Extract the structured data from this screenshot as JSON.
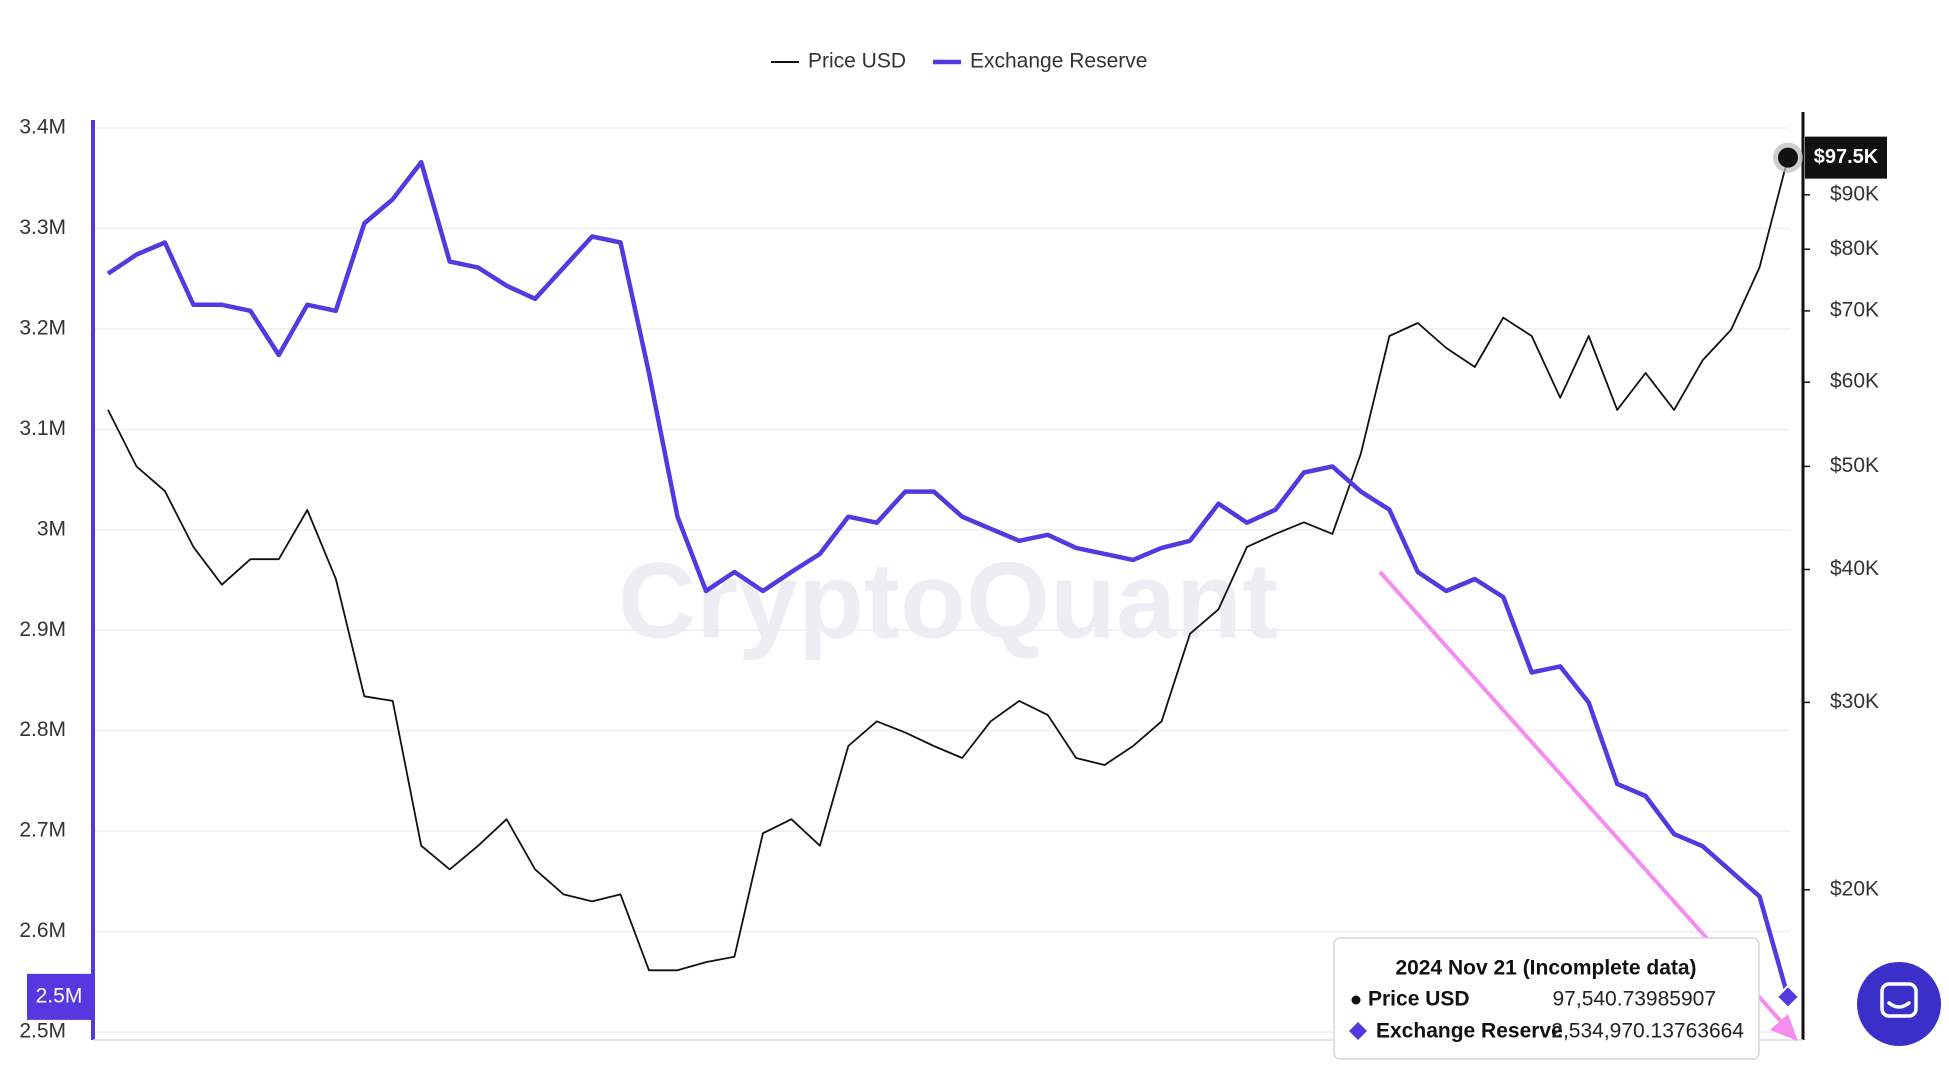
{
  "chart_data": {
    "type": "line",
    "watermark": "CryptoQuant",
    "ylim": [
      2500000,
      3400000
    ],
    "yticks": [
      {
        "value": 2500000,
        "label": "2.5M"
      },
      {
        "value": 2600000,
        "label": "2.6M"
      },
      {
        "value": 2700000,
        "label": "2.7M"
      },
      {
        "value": 2800000,
        "label": "2.8M"
      },
      {
        "value": 2900000,
        "label": "2.9M"
      },
      {
        "value": 3000000,
        "label": "3M"
      },
      {
        "value": 3100000,
        "label": "3.1M"
      },
      {
        "value": 3200000,
        "label": "3.2M"
      },
      {
        "value": 3300000,
        "label": "3.3M"
      },
      {
        "value": 3400000,
        "label": "3.4M"
      }
    ],
    "y2lim": [
      14700,
      104000
    ],
    "y2log": true,
    "y2ticks": [
      {
        "value": 20000,
        "label": "$20K"
      },
      {
        "value": 30000,
        "label": "$30K"
      },
      {
        "value": 40000,
        "label": "$40K"
      },
      {
        "value": 50000,
        "label": "$50K"
      },
      {
        "value": 60000,
        "label": "$60K"
      },
      {
        "value": 70000,
        "label": "$70K"
      },
      {
        "value": 80000,
        "label": "$80K"
      },
      {
        "value": 90000,
        "label": "$90K"
      }
    ],
    "grid": true,
    "series": [
      {
        "name": "Price USD",
        "color": "#111111",
        "axis": "y2",
        "values": [
          56500,
          50000,
          47400,
          42000,
          38700,
          40900,
          40900,
          45500,
          39200,
          30400,
          30100,
          22000,
          20900,
          22000,
          23300,
          20900,
          19800,
          19500,
          19800,
          16800,
          16800,
          17100,
          17300,
          22600,
          23300,
          22000,
          27300,
          28800,
          28100,
          27300,
          26600,
          28800,
          30100,
          29200,
          26600,
          26200,
          27300,
          28800,
          34800,
          36700,
          42000,
          43200,
          44300,
          43200,
          51400,
          66300,
          68200,
          64600,
          62000,
          69000,
          66300,
          58000,
          66300,
          56500,
          61200,
          56500,
          62900,
          67200,
          76900,
          97540.73985907
        ],
        "value_labels": [
          null,
          null,
          null,
          null,
          null,
          null,
          null,
          null,
          null,
          null,
          null,
          null,
          null,
          null,
          null,
          null,
          null,
          null,
          null,
          null,
          null,
          null,
          null,
          null,
          null,
          null,
          null,
          null,
          null,
          null,
          null,
          null,
          null,
          null,
          null,
          null,
          null,
          null,
          null,
          null,
          null,
          null,
          null,
          null,
          null,
          null,
          null,
          null,
          null,
          null,
          null,
          null,
          null,
          null,
          null,
          null,
          null,
          null,
          null,
          "$97.5K"
        ]
      },
      {
        "name": "Exchange Reserve",
        "color": "#5538e0",
        "values": [
          3255000,
          3274000,
          3286000,
          3224000,
          3224000,
          3218000,
          3174000,
          3224000,
          3218000,
          3305000,
          3329000,
          3366000,
          3267000,
          3261000,
          3243000,
          3230000,
          3261000,
          3292000,
          3286000,
          3156000,
          3013000,
          2939000,
          2958000,
          2939000,
          2958000,
          2976000,
          3013000,
          3007000,
          3038000,
          3038000,
          3013000,
          3001000,
          2989000,
          2995000,
          2982000,
          2976000,
          2970000,
          2982000,
          2989000,
          3026000,
          3007000,
          3020000,
          3057000,
          3063000,
          3038000,
          3020000,
          2958000,
          2939000,
          2951000,
          2933000,
          2858000,
          2864000,
          2828000,
          2747000,
          2735000,
          2697000,
          2685000,
          2660000,
          2635000,
          2534970.13763664
        ],
        "value_labels": [
          null,
          null,
          null,
          null,
          null,
          null,
          null,
          null,
          null,
          null,
          null,
          null,
          null,
          null,
          null,
          null,
          null,
          null,
          null,
          null,
          null,
          null,
          null,
          null,
          null,
          null,
          null,
          null,
          null,
          null,
          null,
          null,
          null,
          null,
          null,
          null,
          null,
          null,
          null,
          null,
          null,
          null,
          null,
          null,
          null,
          null,
          null,
          null,
          null,
          null,
          null,
          null,
          null,
          null,
          null,
          null,
          null,
          null,
          null,
          "2.5M"
        ]
      }
    ],
    "tooltip": {
      "title": "2024 Nov 21 (Incomplete data)",
      "rows": [
        {
          "value": 97540.73985907,
          "label": "97,540.73985907"
        },
        {
          "value": 2534970.13763664,
          "label": "2,534,970.13763664"
        }
      ]
    }
  }
}
